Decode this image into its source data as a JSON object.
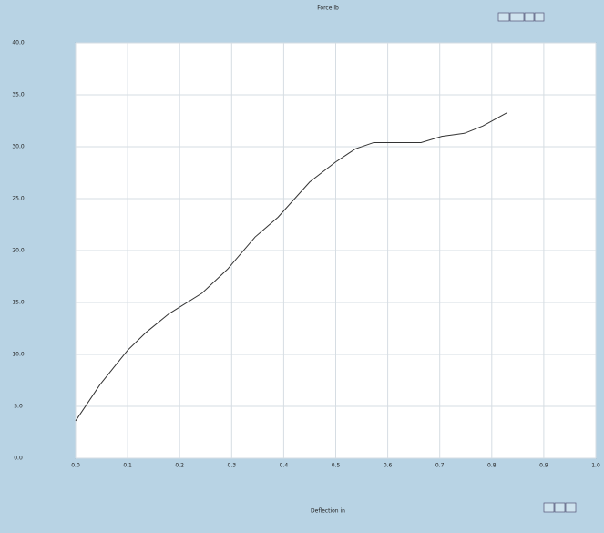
{
  "chart_data": {
    "type": "line",
    "title": "Force lb",
    "x_label": "Deflection in",
    "x": [
      0,
      0.047,
      0.1,
      0.135,
      0.179,
      0.243,
      0.292,
      0.345,
      0.389,
      0.45,
      0.499,
      0.538,
      0.573,
      0.625,
      0.664,
      0.704,
      0.748,
      0.783,
      0.83
    ],
    "series": [
      {
        "color": "#333333",
        "values": [
          3.6,
          7.1,
          10.4,
          12.1,
          13.9,
          15.9,
          18.2,
          21.3,
          23.2,
          26.6,
          28.5,
          29.8,
          30.4,
          30.4,
          30.4,
          31.0,
          31.3,
          32.0,
          33.3
        ]
      }
    ],
    "xlim": [
      0,
      1
    ],
    "ylim": [
      0,
      40
    ],
    "xticks": [
      {
        "value": 0,
        "label": "0.0"
      },
      {
        "value": 0.1,
        "label": "0.1"
      },
      {
        "value": 0.2,
        "label": "0.2"
      },
      {
        "value": 0.3,
        "label": "0.3"
      },
      {
        "value": 0.4,
        "label": "0.4"
      },
      {
        "value": 0.5,
        "label": "0.5"
      },
      {
        "value": 0.6,
        "label": "0.6"
      },
      {
        "value": 0.7,
        "label": "0.7"
      },
      {
        "value": 0.8,
        "label": "0.8"
      },
      {
        "value": 0.9,
        "label": "0.9"
      },
      {
        "value": 1,
        "label": "1.0"
      }
    ],
    "yticks": [
      {
        "value": 0,
        "label": "0.0"
      },
      {
        "value": 5,
        "label": "5.0"
      },
      {
        "value": 10,
        "label": "10.0"
      },
      {
        "value": 15,
        "label": "15.0"
      },
      {
        "value": 20,
        "label": "20.0"
      },
      {
        "value": 25,
        "label": "25.0"
      },
      {
        "value": 30,
        "label": "30.0"
      },
      {
        "value": 35,
        "label": "35.0"
      },
      {
        "value": 40,
        "label": "40.0"
      }
    ],
    "grid": true
  }
}
